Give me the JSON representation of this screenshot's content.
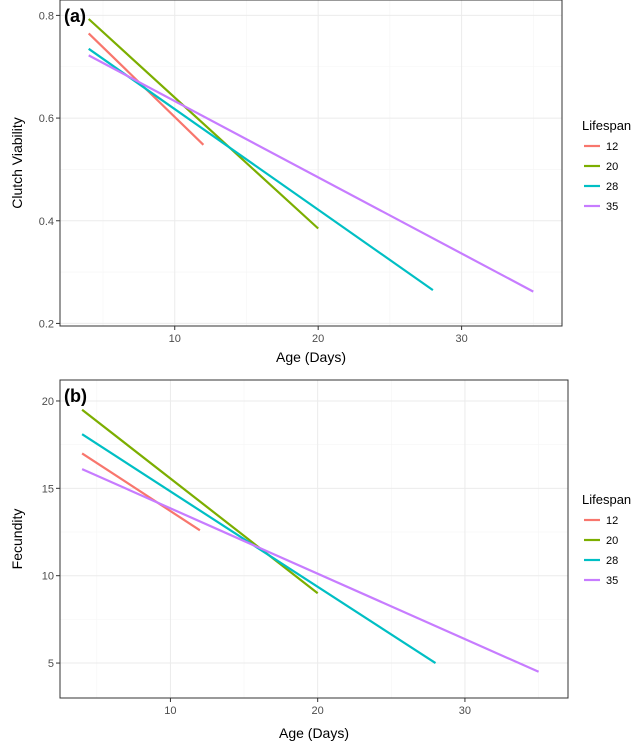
{
  "chart_data": [
    {
      "type": "line",
      "panel_label": "(a)",
      "xlabel": "Age (Days)",
      "ylabel": "Clutch Viability",
      "xlim": [
        2,
        37
      ],
      "ylim": [
        0.195,
        0.83
      ],
      "x_ticks": [
        10,
        20,
        30
      ],
      "y_ticks": [
        0.2,
        0.4,
        0.6,
        0.8
      ],
      "y_tick_labels": [
        "0.2",
        "0.4",
        "0.6",
        "0.8"
      ],
      "grid": true,
      "legend": {
        "title": "Lifespan",
        "placement": "right"
      },
      "series": [
        {
          "name": "12",
          "color": "#F8766D",
          "x": [
            4,
            12
          ],
          "y": [
            0.765,
            0.548
          ]
        },
        {
          "name": "20",
          "color": "#7CAE00",
          "x": [
            4,
            20
          ],
          "y": [
            0.793,
            0.385
          ]
        },
        {
          "name": "28",
          "color": "#00BFC4",
          "x": [
            4,
            28
          ],
          "y": [
            0.735,
            0.265
          ]
        },
        {
          "name": "35",
          "color": "#C77CFF",
          "x": [
            4,
            35
          ],
          "y": [
            0.722,
            0.262
          ]
        }
      ]
    },
    {
      "type": "line",
      "panel_label": "(b)",
      "xlabel": "Age (Days)",
      "ylabel": "Fecundity",
      "xlim": [
        2.5,
        37
      ],
      "ylim": [
        3.0,
        21.2
      ],
      "x_ticks": [
        10,
        20,
        30
      ],
      "y_ticks": [
        5,
        10,
        15,
        20
      ],
      "y_tick_labels": [
        "5",
        "10",
        "15",
        "20"
      ],
      "grid": true,
      "legend": {
        "title": "Lifespan",
        "placement": "right"
      },
      "series": [
        {
          "name": "12",
          "color": "#F8766D",
          "x": [
            4,
            12
          ],
          "y": [
            17.0,
            12.6
          ]
        },
        {
          "name": "20",
          "color": "#7CAE00",
          "x": [
            4,
            20
          ],
          "y": [
            19.5,
            9.0
          ]
        },
        {
          "name": "28",
          "color": "#00BFC4",
          "x": [
            4,
            28
          ],
          "y": [
            18.1,
            5.0
          ]
        },
        {
          "name": "35",
          "color": "#C77CFF",
          "x": [
            4,
            35
          ],
          "y": [
            16.1,
            4.5
          ]
        }
      ]
    }
  ]
}
